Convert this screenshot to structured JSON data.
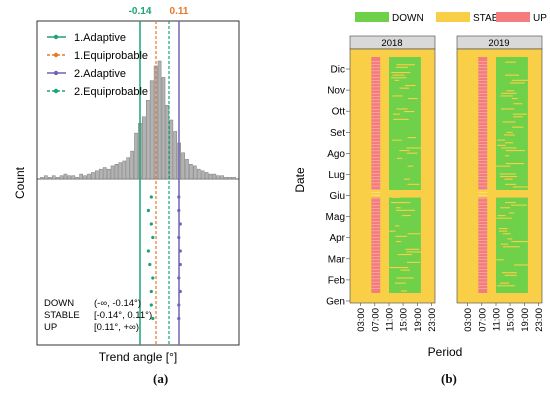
{
  "captions": {
    "a": "(a)",
    "b": "(b)"
  },
  "chart_data": [
    {
      "type": "bar",
      "panel": "a",
      "xlabel": "Trend angle [°]",
      "ylabel": "Count",
      "thresholds": [
        {
          "label": "-0.14",
          "value": -0.14,
          "color": "#1aa37a"
        },
        {
          "label": "0.11",
          "value": 0.11,
          "color": "#e8762b"
        }
      ],
      "legend": [
        {
          "name": "1.Adaptive",
          "color": "#1aa37a",
          "style": "solid"
        },
        {
          "name": "1.Equiprobable",
          "color": "#e8762b",
          "style": "dashed"
        },
        {
          "name": "2.Adaptive",
          "color": "#6f66b3",
          "style": "solid"
        },
        {
          "name": "2.Equiprobable",
          "color": "#1aa37a",
          "style": "dashed"
        }
      ],
      "histogram_counts": [
        1,
        2,
        1,
        2,
        1,
        2,
        3,
        2,
        2,
        1,
        3,
        2,
        3,
        4,
        5,
        6,
        7,
        6,
        8,
        9,
        10,
        11,
        13,
        17,
        28,
        34,
        38,
        48,
        60,
        69,
        72,
        62,
        45,
        36,
        29,
        22,
        16,
        12,
        9,
        8,
        6,
        5,
        4,
        3,
        3,
        2,
        2,
        1,
        1,
        1
      ],
      "method_markers": [
        {
          "method": "1.Adaptive",
          "color": "#1aa37a",
          "values": [
            -0.06,
            -0.08,
            -0.06,
            -0.05,
            -0.08,
            -0.07,
            -0.05,
            -0.06,
            -0.06,
            -0.05
          ]
        },
        {
          "method": "2.Adaptive",
          "color": "#6f66b3",
          "values": [
            0.13,
            0.13,
            0.14,
            0.13,
            0.14,
            0.14,
            0.13,
            0.14,
            0.13,
            0.13
          ]
        }
      ],
      "class_ranges": [
        {
          "class": "DOWN",
          "range": "(-∞, -0.14°)"
        },
        {
          "class": "STABLE",
          "range": "[-0.14°, 0.11°)"
        },
        {
          "class": "UP",
          "range": "[0.11°, +∞)"
        }
      ]
    },
    {
      "type": "heatmap",
      "panel": "b",
      "xlabel": "Period",
      "ylabel": "Date",
      "legend": [
        {
          "name": "DOWN",
          "color": "#6fd04a"
        },
        {
          "name": "STABLE",
          "color": "#f9cf47"
        },
        {
          "name": "UP",
          "color": "#f47c7c"
        }
      ],
      "facets": [
        "2018",
        "2019"
      ],
      "y_ticks": [
        "Gen",
        "Feb",
        "Mar",
        "Apr",
        "Mag",
        "Giu",
        "Lug",
        "Ago",
        "Set",
        "Ott",
        "Nov",
        "Dic"
      ],
      "x_ticks": [
        "03:00",
        "07:00",
        "11:00",
        "15:00",
        "19:00",
        "23:00"
      ],
      "daily_pattern": [
        {
          "from": "00:00",
          "to": "06:00",
          "class": "STABLE"
        },
        {
          "from": "06:00",
          "to": "08:30",
          "class": "UP"
        },
        {
          "from": "08:30",
          "to": "11:00",
          "class": "STABLE"
        },
        {
          "from": "11:00",
          "to": "20:00",
          "class": "DOWN"
        },
        {
          "from": "20:00",
          "to": "24:00",
          "class": "STABLE"
        }
      ]
    }
  ]
}
